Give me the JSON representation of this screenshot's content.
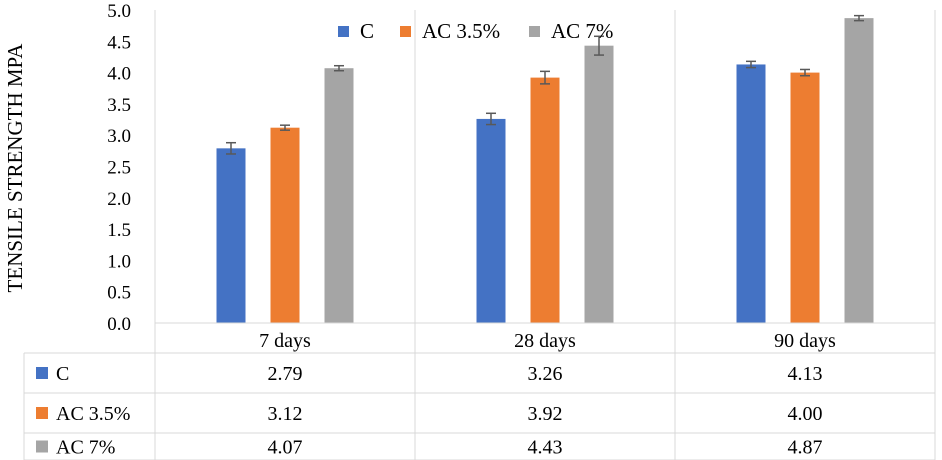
{
  "chart_data": {
    "type": "bar",
    "title": "",
    "xlabel": "",
    "ylabel": "TENSILE STRENGTH MPA",
    "ylim": [
      0,
      5
    ],
    "ytick_step": 0.5,
    "yticks": [
      "0.0",
      "0.5",
      "1.0",
      "1.5",
      "2.0",
      "2.5",
      "3.0",
      "3.5",
      "4.0",
      "4.5",
      "5.0"
    ],
    "categories": [
      "7 days",
      "28 days",
      "90 days"
    ],
    "grid": "vertical category separators only",
    "legend_position": "top",
    "data_table": true,
    "series": [
      {
        "name": "C",
        "color": "#4472C4",
        "values": [
          2.79,
          3.26,
          4.13
        ],
        "labels": [
          "2.79",
          "3.26",
          "4.13"
        ],
        "errors": [
          0.09,
          0.09,
          0.05
        ]
      },
      {
        "name": "AC 3.5%",
        "color": "#ED7D31",
        "values": [
          3.12,
          3.92,
          4.0
        ],
        "labels": [
          "3.12",
          "3.92",
          "4.00"
        ],
        "errors": [
          0.04,
          0.1,
          0.05
        ]
      },
      {
        "name": "AC 7%",
        "color": "#A5A5A5",
        "values": [
          4.07,
          4.43,
          4.87
        ],
        "labels": [
          "4.07",
          "4.43",
          "4.87"
        ],
        "errors": [
          0.04,
          0.15,
          0.04
        ]
      }
    ]
  }
}
